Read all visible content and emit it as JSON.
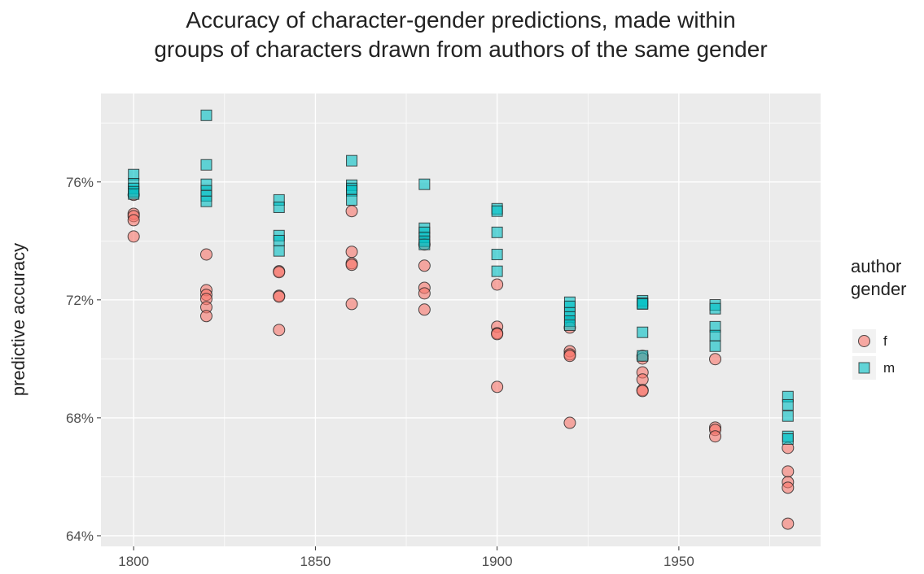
{
  "chart_data": {
    "type": "scatter",
    "title": [
      "Accuracy of character-gender predictions, made within",
      "groups of characters drawn from authors of the same gender"
    ],
    "y_label": "predictive accuracy",
    "legend_title": [
      "author",
      "gender"
    ],
    "legend": "right",
    "grid": true,
    "xlim": [
      1791,
      1989
    ],
    "ylim": [
      63.64,
      79.0
    ],
    "xticks": [
      1800,
      1850,
      1900,
      1950
    ],
    "x_minor_ticks": [
      1825,
      1875,
      1925,
      1975
    ],
    "yticks": [
      {
        "value": 64,
        "label": "64%"
      },
      {
        "value": 68,
        "label": "68%"
      },
      {
        "value": 72,
        "label": "72%"
      },
      {
        "value": 76,
        "label": "76%"
      }
    ],
    "y_minor_ticks": [
      66,
      70,
      74,
      78
    ],
    "series": [
      {
        "name": "f",
        "color": "#F8766D",
        "marker": "circle",
        "x": [
          1800,
          1800,
          1800,
          1800,
          1800,
          1820,
          1820,
          1820,
          1820,
          1820,
          1820,
          1840,
          1840,
          1840,
          1840,
          1840,
          1860,
          1860,
          1860,
          1860,
          1860,
          1880,
          1880,
          1880,
          1880,
          1880,
          1900,
          1900,
          1900,
          1900,
          1900,
          1920,
          1920,
          1920,
          1920,
          1920,
          1940,
          1940,
          1940,
          1940,
          1940,
          1940,
          1960,
          1960,
          1960,
          1960,
          1980,
          1980,
          1980,
          1980,
          1980
        ],
        "values": [
          75.56,
          74.92,
          74.84,
          74.7,
          74.15,
          73.54,
          72.33,
          72.17,
          72.03,
          71.75,
          71.45,
          72.97,
          72.94,
          72.14,
          72.11,
          70.98,
          75.01,
          73.63,
          73.24,
          73.19,
          71.86,
          73.88,
          73.16,
          72.41,
          72.22,
          71.67,
          72.52,
          71.09,
          70.87,
          70.84,
          69.05,
          71.06,
          70.26,
          70.15,
          70.1,
          67.83,
          70.1,
          70.01,
          69.54,
          69.3,
          68.94,
          68.91,
          69.99,
          67.67,
          67.59,
          67.37,
          66.98,
          66.18,
          65.82,
          65.63,
          64.41
        ]
      },
      {
        "name": "m",
        "color": "#00BFC4",
        "marker": "square",
        "x": [
          1800,
          1800,
          1800,
          1800,
          1800,
          1820,
          1820,
          1820,
          1820,
          1820,
          1820,
          1840,
          1840,
          1840,
          1840,
          1840,
          1860,
          1860,
          1860,
          1860,
          1860,
          1880,
          1880,
          1880,
          1880,
          1880,
          1880,
          1900,
          1900,
          1900,
          1900,
          1900,
          1920,
          1920,
          1920,
          1920,
          1920,
          1920,
          1940,
          1940,
          1940,
          1940,
          1940,
          1960,
          1960,
          1960,
          1960,
          1960,
          1980,
          1980,
          1980,
          1980,
          1980
        ],
        "values": [
          76.25,
          75.94,
          75.78,
          75.67,
          75.59,
          78.26,
          76.58,
          75.92,
          75.7,
          75.53,
          75.34,
          75.39,
          75.14,
          74.18,
          74.01,
          73.66,
          76.72,
          75.89,
          75.78,
          75.7,
          75.39,
          75.92,
          74.43,
          74.29,
          74.12,
          73.99,
          73.88,
          75.09,
          75.01,
          74.29,
          73.54,
          72.97,
          71.92,
          71.78,
          71.56,
          71.42,
          71.28,
          71.14,
          71.97,
          71.89,
          71.86,
          70.9,
          70.1,
          71.83,
          71.7,
          71.09,
          70.79,
          70.43,
          68.72,
          68.44,
          68.06,
          67.37,
          67.28
        ]
      }
    ]
  }
}
